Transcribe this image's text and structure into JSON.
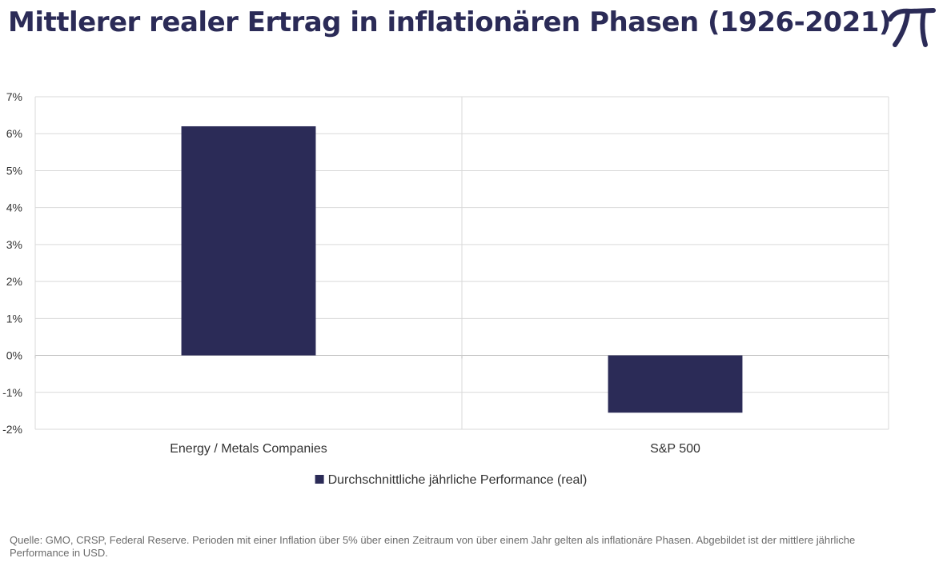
{
  "header": {
    "title": "Mittlerer realer Ertrag in inflationären Phasen (1926-2021)",
    "logo_icon": "pi-logo-icon"
  },
  "colors": {
    "bar": "#2b2b57",
    "grid": "#d9d9d9",
    "title": "#2b2b57",
    "axis_text": "#333333"
  },
  "chart_data": {
    "type": "bar",
    "title": "",
    "xlabel": "",
    "ylabel": "",
    "categories": [
      "Energy / Metals Companies",
      "S&P 500"
    ],
    "series": [
      {
        "name": "Durchschnittliche jährliche Performance (real)",
        "values": [
          6.2,
          -1.55
        ]
      }
    ],
    "ylim": [
      -2,
      7
    ],
    "yticks": [
      -2,
      -1,
      0,
      1,
      2,
      3,
      4,
      5,
      6,
      7
    ],
    "ytick_labels": [
      "-2%",
      "-1%",
      "0%",
      "1%",
      "2%",
      "3%",
      "4%",
      "5%",
      "6%",
      "7%"
    ],
    "grid": true,
    "legend_position": "bottom-center"
  },
  "footer": {
    "source": "Quelle: GMO, CRSP, Federal Reserve. Perioden mit einer Inflation über 5% über einen Zeitraum von über einem Jahr gelten als inflationäre Phasen. Abgebildet ist der mittlere jährliche Performance in USD."
  }
}
